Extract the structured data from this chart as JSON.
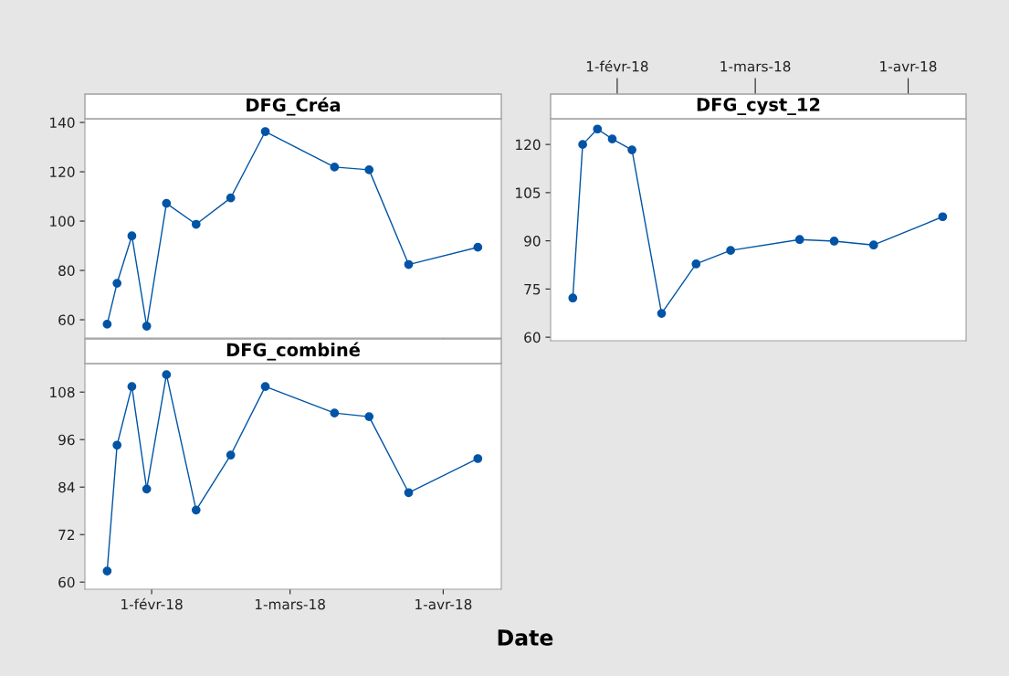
{
  "chart_data": [
    {
      "type": "line",
      "title": "DFG_Créa",
      "x": [
        "2018-01-23",
        "2018-01-25",
        "2018-01-28",
        "2018-01-31",
        "2018-02-04",
        "2018-02-10",
        "2018-02-17",
        "2018-02-24",
        "2018-03-10",
        "2018-03-17",
        "2018-03-25",
        "2018-04-08"
      ],
      "series": [
        {
          "color": "#0054a6",
          "values": [
            58.2,
            74.8,
            94,
            57.4,
            107.2,
            98.7,
            109.4,
            136.3,
            121.9,
            120.8,
            82.4,
            89.4
          ]
        }
      ],
      "xlim": [
        "2018-01-18T12:00",
        "2018-04-12T18:00"
      ],
      "xticks": [
        {
          "value": "2018-02-01",
          "label": null
        },
        {
          "value": "2018-03-01",
          "label": null
        },
        {
          "value": "2018-04-01",
          "label": null
        }
      ],
      "ylim": [
        52.6,
        141.5
      ],
      "yticks": [
        60,
        80,
        100,
        120,
        140
      ],
      "tick_labels": "y",
      "marker": "circle",
      "line_style": "solid",
      "grid": false
    },
    {
      "type": "line",
      "title": "DFG_cyst_12",
      "x": [
        "2018-01-23",
        "2018-01-25",
        "2018-01-28",
        "2018-01-31",
        "2018-02-04",
        "2018-02-10",
        "2018-02-17",
        "2018-02-24",
        "2018-03-10",
        "2018-03-17",
        "2018-03-25",
        "2018-04-08"
      ],
      "series": [
        {
          "color": "#0054a6",
          "values": [
            72.2,
            120,
            124.8,
            121.7,
            118.3,
            67.4,
            82.8,
            87,
            90.4,
            89.9,
            88.7,
            97.5
          ]
        }
      ],
      "xlim": [
        "2018-01-18T12:00",
        "2018-04-12T18:00"
      ],
      "xticks": [
        {
          "value": "2018-02-01",
          "label": "1-févr-18"
        },
        {
          "value": "2018-03-01",
          "label": "1-mars-18"
        },
        {
          "value": "2018-04-01",
          "label": "1-avr-18"
        }
      ],
      "ylim": [
        58.9,
        128
      ],
      "yticks": [
        60,
        75,
        90,
        105,
        120
      ],
      "marker": "circle",
      "line_style": "solid",
      "grid": false
    },
    {
      "type": "line",
      "title": "DFG_combiné",
      "xlabel": "Date",
      "x": [
        "2018-01-23",
        "2018-01-25",
        "2018-01-28",
        "2018-01-31",
        "2018-02-04",
        "2018-02-10",
        "2018-02-17",
        "2018-02-24",
        "2018-03-10",
        "2018-03-17",
        "2018-03-25",
        "2018-04-08"
      ],
      "series": [
        {
          "color": "#0054a6",
          "values": [
            62.8,
            94.6,
            109.4,
            83.5,
            112.4,
            78.2,
            92.1,
            109.4,
            102.7,
            101.8,
            82.6,
            91.2
          ]
        }
      ],
      "xlim": [
        "2018-01-18T12:00",
        "2018-04-12T18:00"
      ],
      "xticks": [
        {
          "value": "2018-02-01",
          "label": "1-févr-18"
        },
        {
          "value": "2018-03-01",
          "label": "1-mars-18"
        },
        {
          "value": "2018-04-01",
          "label": "1-avr-18"
        }
      ],
      "ylim": [
        58.2,
        115.2
      ],
      "yticks": [
        60,
        72,
        84,
        96,
        108
      ],
      "marker": "circle",
      "line_style": "solid",
      "grid": false
    }
  ]
}
